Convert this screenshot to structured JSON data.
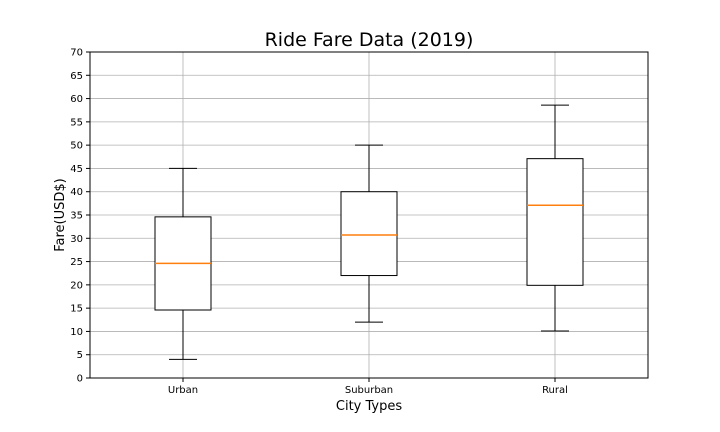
{
  "chart_data": {
    "type": "box",
    "title": "Ride Fare Data (2019)",
    "xlabel": "City Types",
    "ylabel": "Fare(USD$)",
    "ylim": [
      0,
      70
    ],
    "yticks": [
      0,
      5,
      10,
      15,
      20,
      25,
      30,
      35,
      40,
      45,
      50,
      55,
      60,
      65,
      70
    ],
    "grid": true,
    "categories": [
      "Urban",
      "Suburban",
      "Rural"
    ],
    "boxes": [
      {
        "whisker_low": 4.0,
        "q1": 14.6,
        "median": 24.6,
        "q3": 34.6,
        "whisker_high": 45.0
      },
      {
        "whisker_low": 12.0,
        "q1": 22.0,
        "median": 30.7,
        "q3": 40.0,
        "whisker_high": 50.0
      },
      {
        "whisker_low": 10.1,
        "q1": 19.9,
        "median": 37.1,
        "q3": 47.1,
        "whisker_high": 58.6
      }
    ],
    "colors": {
      "box": "#000000",
      "median": "#ff7f0e",
      "grid": "#b0b0b0"
    }
  }
}
